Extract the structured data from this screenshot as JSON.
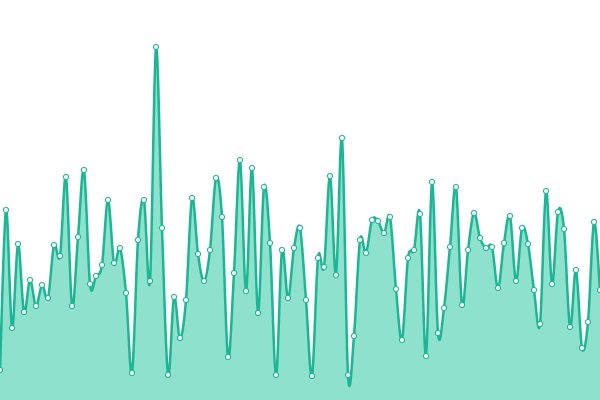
{
  "chart_data": {
    "type": "area",
    "color": "#1db594",
    "fill": "#8de1cd",
    "values": [
      30,
      190,
      72,
      156,
      88,
      120,
      94,
      115,
      102,
      155,
      144,
      223,
      94,
      163,
      230,
      116,
      124,
      135,
      200,
      137,
      152,
      107,
      27,
      160,
      200,
      119,
      353,
      172,
      25,
      103,
      62,
      100,
      202,
      146,
      119,
      150,
      222,
      183,
      43,
      127,
      240,
      109,
      232,
      87,
      213,
      157,
      25,
      150,
      102,
      152,
      172,
      100,
      24,
      142,
      133,
      224,
      125,
      262,
      25,
      64,
      160,
      147,
      180,
      179,
      167,
      183,
      111,
      60,
      142,
      150,
      186,
      44,
      218,
      67,
      92,
      153,
      213,
      95,
      150,
      187,
      162,
      152,
      153,
      112,
      157,
      184,
      119,
      172,
      156,
      110,
      76,
      209,
      116,
      188,
      171,
      73,
      130,
      52,
      78,
      178,
      110
    ],
    "ylim": [
      0,
      400
    ]
  }
}
